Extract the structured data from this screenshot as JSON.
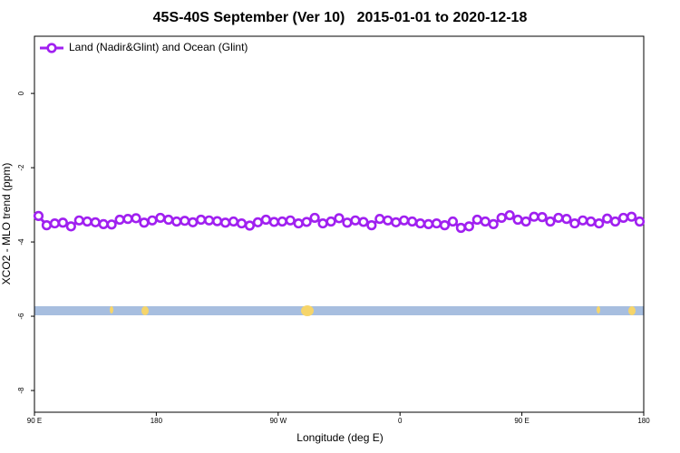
{
  "chart_data": {
    "type": "line",
    "title": "45S-40S September (Ver 10)   2015-01-01 to 2020-12-18",
    "x_label": "Longitude (deg E)",
    "y_label": "XCO2 - MLO trend (ppm)",
    "xlim": [
      90,
      540
    ],
    "ylim": [
      -8.585,
      1.54
    ],
    "xticks": [
      {
        "value": 90,
        "label": "90 E"
      },
      180,
      {
        "value": 270,
        "label": "90 W"
      },
      {
        "value": 360,
        "label": "0"
      },
      {
        "value": 450,
        "label": "90 E"
      },
      {
        "value": 540,
        "label": "180"
      }
    ],
    "yticks": [
      0,
      -2,
      -4,
      -6,
      -8
    ],
    "legend": "top-left",
    "x": [
      93,
      99,
      105,
      111,
      117,
      123,
      129,
      135,
      141,
      147,
      153,
      159,
      165,
      171,
      177,
      183,
      189,
      195,
      201,
      207,
      213,
      219,
      225,
      231,
      237,
      243,
      249,
      255,
      261,
      267,
      273,
      279,
      285,
      291,
      297,
      303,
      309,
      315,
      321,
      327,
      333,
      339,
      345,
      351,
      357,
      363,
      369,
      375,
      381,
      387,
      393,
      399,
      405,
      411,
      417,
      423,
      429,
      435,
      441,
      447,
      453,
      459,
      465,
      471,
      477,
      483,
      489,
      495,
      501,
      507,
      513,
      519,
      525,
      531,
      537
    ],
    "series": [
      {
        "name": "Land (Nadir&Glint) and Ocean (Glint)",
        "color": "#a020f0",
        "values": [
          -3.3,
          -3.55,
          -3.5,
          -3.48,
          -3.58,
          -3.42,
          -3.45,
          -3.47,
          -3.52,
          -3.53,
          -3.4,
          -3.38,
          -3.36,
          -3.48,
          -3.42,
          -3.35,
          -3.4,
          -3.45,
          -3.43,
          -3.47,
          -3.4,
          -3.42,
          -3.44,
          -3.48,
          -3.45,
          -3.5,
          -3.56,
          -3.47,
          -3.4,
          -3.46,
          -3.45,
          -3.42,
          -3.5,
          -3.46,
          -3.35,
          -3.5,
          -3.45,
          -3.36,
          -3.48,
          -3.42,
          -3.46,
          -3.55,
          -3.38,
          -3.42,
          -3.47,
          -3.42,
          -3.45,
          -3.5,
          -3.52,
          -3.5,
          -3.55,
          -3.45,
          -3.62,
          -3.58,
          -3.4,
          -3.45,
          -3.52,
          -3.35,
          -3.28,
          -3.4,
          -3.45,
          -3.32,
          -3.33,
          -3.45,
          -3.35,
          -3.38,
          -3.5,
          -3.42,
          -3.45,
          -3.5,
          -3.37,
          -3.45,
          -3.35,
          -3.32,
          -3.45
        ]
      }
    ]
  }
}
